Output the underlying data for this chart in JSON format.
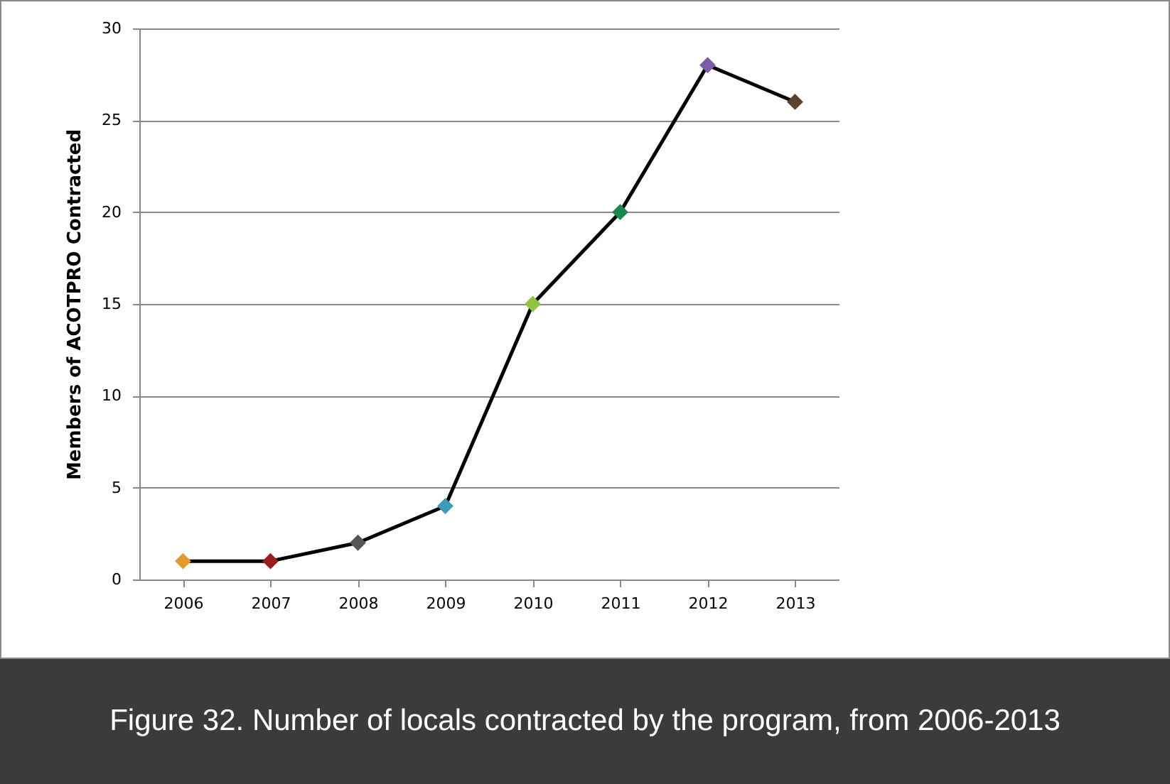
{
  "chart_data": {
    "type": "line",
    "ylabel": "Members of ACOTPRO Contracted",
    "categories": [
      "2006",
      "2007",
      "2008",
      "2009",
      "2010",
      "2011",
      "2012",
      "2013"
    ],
    "series": [
      {
        "color": "#000000",
        "colors": [
          "#e39b2b",
          "#9b1c1c",
          "#555555",
          "#3c9bbb",
          "#8dc540",
          "#198a4e",
          "#7b5ca8",
          "#5a4331"
        ],
        "values": [
          1,
          1,
          2,
          4,
          15,
          20,
          28,
          26
        ]
      }
    ],
    "ylim": [
      0,
      30
    ],
    "yticks": [
      0,
      5,
      10,
      15,
      20,
      25,
      30
    ],
    "grid": "y",
    "marker": "diamond",
    "line_style": "solid",
    "annotations": [
      "Figure 32.  Number of locals contracted by the program, from 2006-2013"
    ]
  }
}
